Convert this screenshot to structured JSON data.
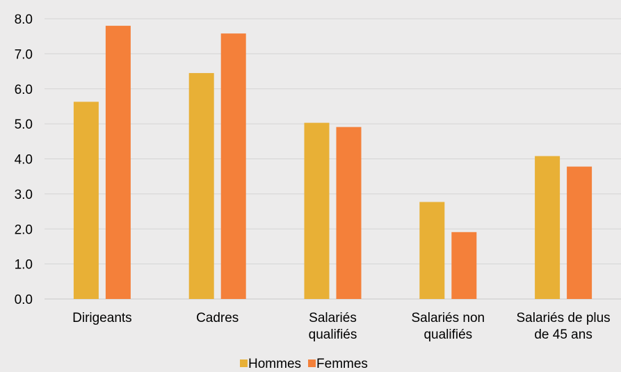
{
  "chart_data": {
    "type": "bar",
    "title": "",
    "xlabel": "",
    "ylabel": "",
    "categories": [
      [
        "Dirigeants"
      ],
      [
        "Cadres"
      ],
      [
        "Salariés",
        "qualifiés"
      ],
      [
        "Salariés non",
        "qualifiés"
      ],
      [
        "Salariés de plus",
        "de 45 ans"
      ]
    ],
    "series": [
      {
        "name": "Hommes",
        "color": "#e8b036",
        "values": [
          5.63,
          6.45,
          5.03,
          2.77,
          4.08
        ]
      },
      {
        "name": "Femmes",
        "color": "#f4803a",
        "values": [
          7.8,
          7.58,
          4.91,
          1.91,
          3.78
        ]
      }
    ],
    "ylim": [
      0,
      8
    ],
    "yticks": [
      "0.0",
      "1.0",
      "2.0",
      "3.0",
      "4.0",
      "5.0",
      "6.0",
      "7.0",
      "8.0"
    ],
    "grid": true,
    "legend_position": "bottom"
  }
}
